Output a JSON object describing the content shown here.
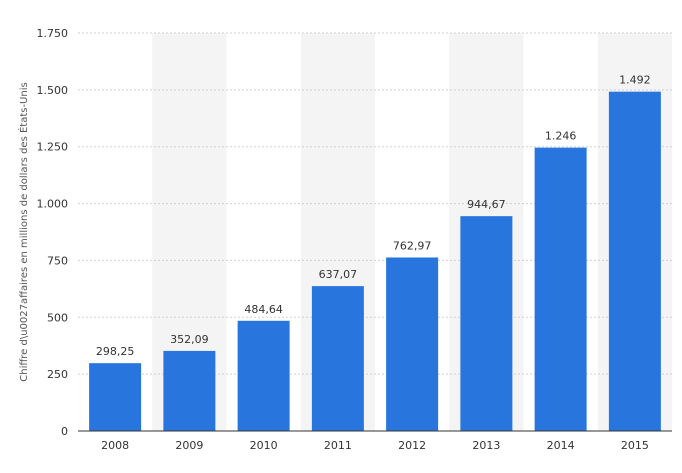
{
  "chart_data": {
    "type": "bar",
    "title": "",
    "xlabel": "",
    "ylabel": "Chiffre d\\u0027affaires en millions de dollars des États-Unis",
    "categories": [
      "2008",
      "2009",
      "2010",
      "2011",
      "2012",
      "2013",
      "2014",
      "2015"
    ],
    "values": [
      298.25,
      352.09,
      484.64,
      637.07,
      762.97,
      944.67,
      1246,
      1492
    ],
    "data_labels": [
      "298,25",
      "352,09",
      "484,64",
      "637,07",
      "762,97",
      "944,67",
      "1.246",
      "1.492"
    ],
    "ylim": [
      0,
      1750
    ],
    "yticks": [
      0,
      250,
      500,
      750,
      1000,
      1250,
      1500,
      1750
    ],
    "ytick_labels": [
      "0",
      "250",
      "500",
      "750",
      "1.000",
      "1.250",
      "1.500",
      "1.750"
    ],
    "grid": true,
    "bar_color": "#2876dd",
    "band_color": "#f4f4f4"
  }
}
